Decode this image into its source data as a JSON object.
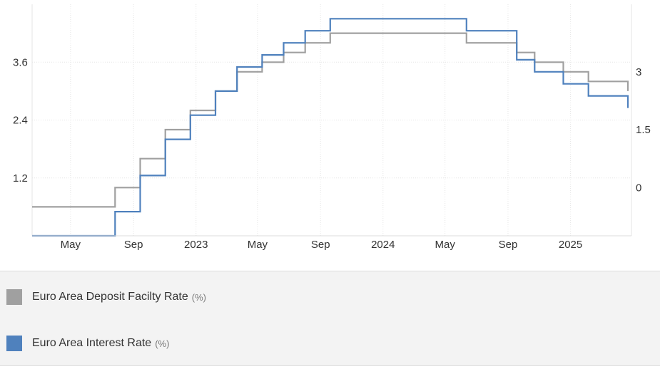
{
  "chart_data": {
    "type": "line",
    "step": true,
    "grid": true,
    "legend_position": "bottom",
    "x_range": [
      "2022-02-15",
      "2025-04-30"
    ],
    "x_ticks": [
      {
        "date": "2022-05-01",
        "label": "May"
      },
      {
        "date": "2022-09-01",
        "label": "Sep"
      },
      {
        "date": "2023-01-01",
        "label": "2023"
      },
      {
        "date": "2023-05-01",
        "label": "May"
      },
      {
        "date": "2023-09-01",
        "label": "Sep"
      },
      {
        "date": "2024-01-01",
        "label": "2024"
      },
      {
        "date": "2024-05-01",
        "label": "May"
      },
      {
        "date": "2024-09-01",
        "label": "Sep"
      },
      {
        "date": "2025-01-01",
        "label": "2025"
      }
    ],
    "left_axis": {
      "range": [
        0,
        4.8
      ],
      "ticks": [
        1.2,
        2.4,
        3.6
      ],
      "tick_labels": [
        "1.2",
        "2.4",
        "3.6"
      ]
    },
    "right_axis": {
      "range": [
        -1.25,
        4.75
      ],
      "ticks": [
        0,
        1.5,
        3
      ],
      "tick_labels": [
        "0",
        "1.5",
        "3"
      ]
    },
    "series": [
      {
        "name": "Euro Area Deposit Facilty Rate",
        "unit": "(%)",
        "color": "#a0a0a0",
        "axis": "right",
        "points": [
          [
            "2022-02-15",
            -0.5
          ],
          [
            "2022-07-27",
            0.0
          ],
          [
            "2022-09-14",
            0.75
          ],
          [
            "2022-11-02",
            1.5
          ],
          [
            "2022-12-21",
            2.0
          ],
          [
            "2023-02-08",
            2.5
          ],
          [
            "2023-03-22",
            3.0
          ],
          [
            "2023-05-10",
            3.25
          ],
          [
            "2023-06-21",
            3.5
          ],
          [
            "2023-08-02",
            3.75
          ],
          [
            "2023-09-20",
            4.0
          ],
          [
            "2024-06-12",
            3.75
          ],
          [
            "2024-09-18",
            3.5
          ],
          [
            "2024-10-23",
            3.25
          ],
          [
            "2024-12-18",
            3.0
          ],
          [
            "2025-02-05",
            2.75
          ],
          [
            "2025-04-23",
            2.5
          ]
        ]
      },
      {
        "name": "Euro Area Interest Rate",
        "unit": "(%)",
        "color": "#4f81bd",
        "axis": "left",
        "points": [
          [
            "2022-02-15",
            0.0
          ],
          [
            "2022-07-27",
            0.5
          ],
          [
            "2022-09-14",
            1.25
          ],
          [
            "2022-11-02",
            2.0
          ],
          [
            "2022-12-21",
            2.5
          ],
          [
            "2023-02-08",
            3.0
          ],
          [
            "2023-03-22",
            3.5
          ],
          [
            "2023-05-10",
            3.75
          ],
          [
            "2023-06-21",
            4.0
          ],
          [
            "2023-08-02",
            4.25
          ],
          [
            "2023-09-20",
            4.5
          ],
          [
            "2024-06-12",
            4.25
          ],
          [
            "2024-09-18",
            3.65
          ],
          [
            "2024-10-23",
            3.4
          ],
          [
            "2024-12-18",
            3.15
          ],
          [
            "2025-02-05",
            2.9
          ],
          [
            "2025-04-23",
            2.65
          ]
        ]
      }
    ]
  }
}
